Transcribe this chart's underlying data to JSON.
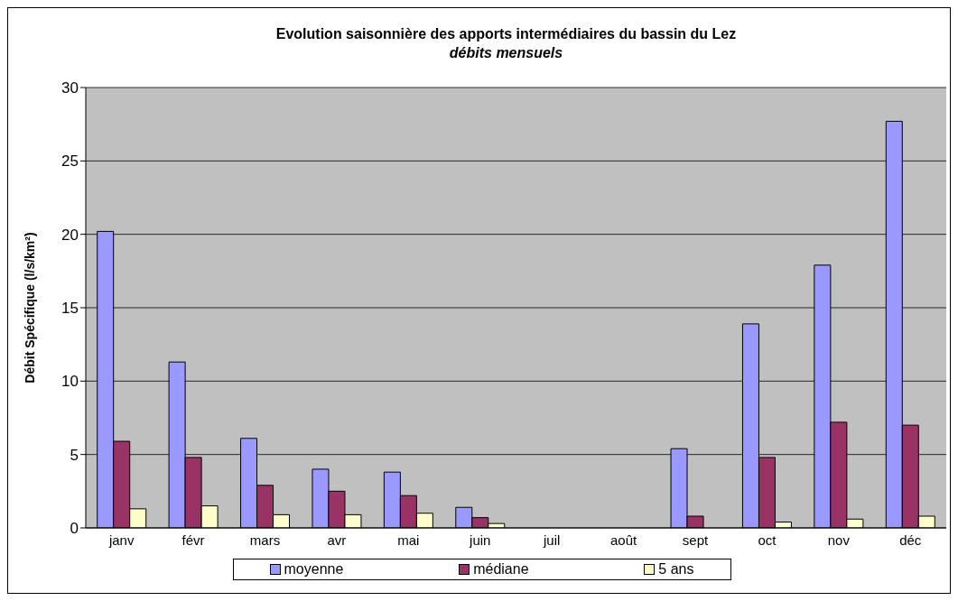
{
  "chart_data": {
    "type": "bar",
    "title": "Evolution saisonnière des apports intermédiaires du bassin du Lez",
    "subtitle": "débits mensuels",
    "ylabel": "Débit Spécifique (l/s/km²)",
    "categories": [
      "janv",
      "févr",
      "mars",
      "avr",
      "mai",
      "juin",
      "juil",
      "août",
      "sept",
      "oct",
      "nov",
      "déc"
    ],
    "series": [
      {
        "name": "moyenne",
        "color": "#9999ff",
        "values": [
          20.2,
          11.3,
          6.1,
          4.0,
          3.8,
          1.4,
          null,
          null,
          5.4,
          13.9,
          17.9,
          27.7
        ]
      },
      {
        "name": "médiane",
        "color": "#993366",
        "values": [
          5.9,
          4.8,
          2.9,
          2.5,
          2.2,
          0.7,
          null,
          null,
          0.8,
          4.8,
          7.2,
          7.0
        ]
      },
      {
        "name": "5  ans",
        "color": "#ffffcc",
        "values": [
          1.3,
          1.5,
          0.9,
          0.9,
          1.0,
          0.3,
          null,
          null,
          null,
          0.4,
          0.6,
          0.8
        ]
      }
    ],
    "ylim": [
      0,
      30
    ],
    "yticks": [
      0,
      5,
      10,
      15,
      20,
      25,
      30
    ],
    "grid": "y",
    "legend": "bottom"
  }
}
